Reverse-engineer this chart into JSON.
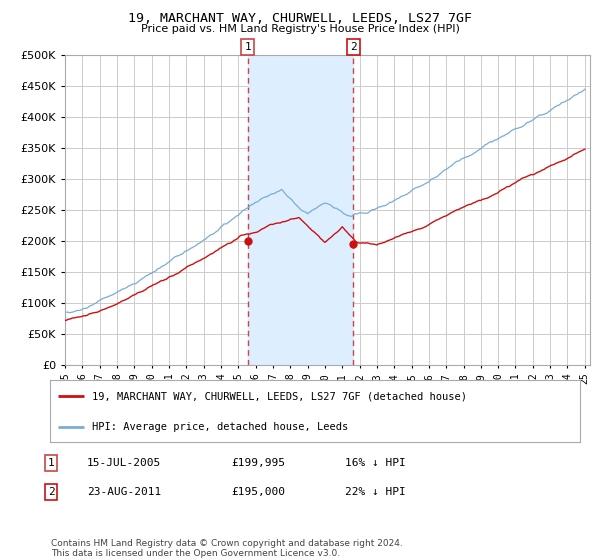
{
  "title": "19, MARCHANT WAY, CHURWELL, LEEDS, LS27 7GF",
  "subtitle": "Price paid vs. HM Land Registry's House Price Index (HPI)",
  "legend_line1": "19, MARCHANT WAY, CHURWELL, LEEDS, LS27 7GF (detached house)",
  "legend_line2": "HPI: Average price, detached house, Leeds",
  "annotation1": {
    "label": "1",
    "price": 199995,
    "date_str": "15-JUL-2005",
    "price_str": "£199,995",
    "hpi_str": "16% ↓ HPI"
  },
  "annotation2": {
    "label": "2",
    "price": 195000,
    "date_str": "23-AUG-2011",
    "price_str": "£195,000",
    "hpi_str": "22% ↓ HPI"
  },
  "hpi_color": "#7aadd4",
  "price_color": "#cc1111",
  "background_color": "#ffffff",
  "plot_bg_color": "#ffffff",
  "grid_color": "#cccccc",
  "shade_color": "#ddeeff",
  "vline_color": "#cc4444",
  "box1_color": "#cc4444",
  "box2_color": "#cc1111",
  "ylim": [
    0,
    500000
  ],
  "yticks": [
    0,
    50000,
    100000,
    150000,
    200000,
    250000,
    300000,
    350000,
    400000,
    450000,
    500000
  ],
  "footnote": "Contains HM Land Registry data © Crown copyright and database right 2024.\nThis data is licensed under the Open Government Licence v3.0.",
  "year_start": 1995,
  "year_end": 2025,
  "year1": 2005.54,
  "year2": 2011.65
}
